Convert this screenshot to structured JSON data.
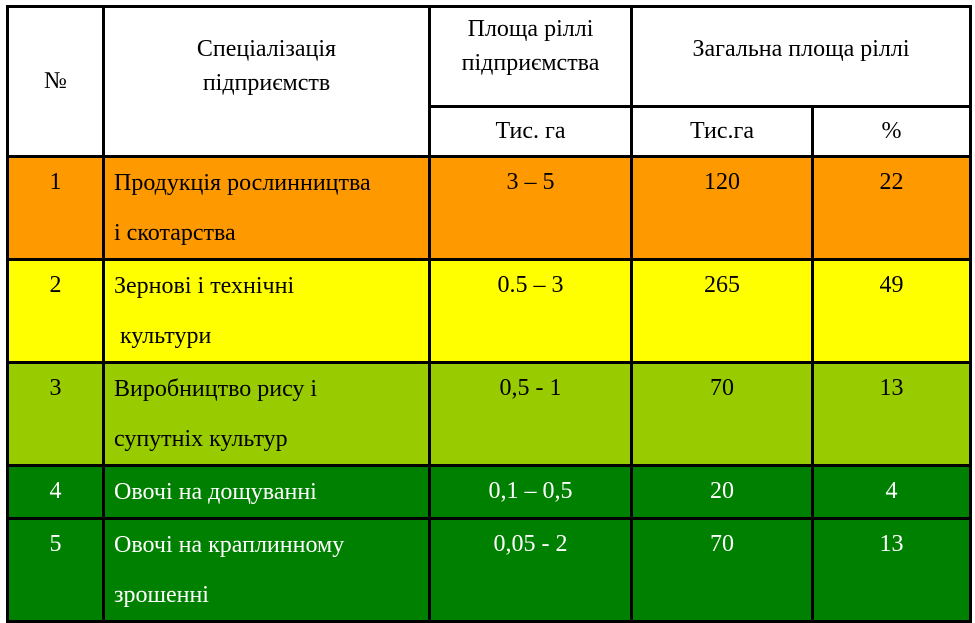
{
  "table": {
    "header": {
      "num": "№",
      "specialization_line1": "Спеціалізація",
      "specialization_line2": "підприємств",
      "area_line1": "Площа ріллі",
      "area_line2": "підприємства",
      "total": "Загальна площа ріллі",
      "unit_area": "Тис. га",
      "unit_total": "Тис.га",
      "unit_percent": "%"
    },
    "rows": [
      {
        "num": "1",
        "name_l1": "Продукція рослинництва",
        "name_l2": "і скотарства",
        "area": "3 – 5",
        "total": "120",
        "percent": "22",
        "color": "#ff9900"
      },
      {
        "num": "2",
        "name_l1": "Зернові і технічні",
        "name_l2": "культури",
        "area": "0.5 – 3",
        "total": "265",
        "percent": "49",
        "color": "#ffff00"
      },
      {
        "num": "3",
        "name_l1": "Виробництво рису і",
        "name_l2": "супутніх культур",
        "area": "0,5 - 1",
        "total": "70",
        "percent": "13",
        "color": "#99cc00"
      },
      {
        "num": "4",
        "name_l1": "Овочі на дощуванні",
        "name_l2": "",
        "area": "0,1 – 0,5",
        "total": "20",
        "percent": "4",
        "color": "#008000"
      },
      {
        "num": "5",
        "name_l1": "Овочі на краплинному",
        "name_l2": "зрошенні",
        "area": "0,05 - 2",
        "total": "70",
        "percent": "13",
        "color": "#008000"
      }
    ]
  }
}
